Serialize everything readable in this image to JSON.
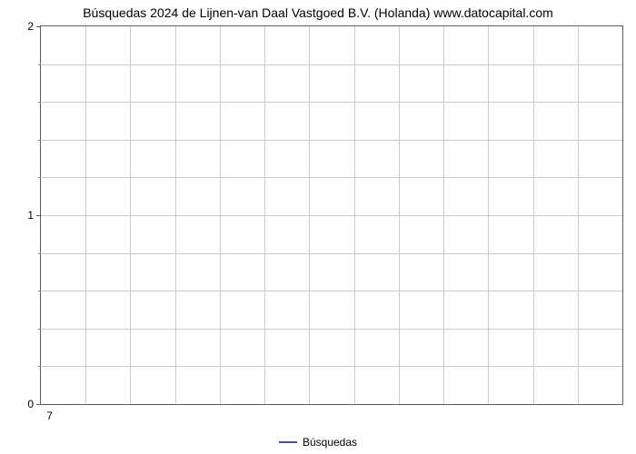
{
  "chart": {
    "type": "line",
    "title": "Búsquedas 2024 de Lijnen-van Daal Vastgoed B.V. (Holanda) www.datocapital.com",
    "title_fontsize": 14,
    "title_color": "#000000",
    "background_color": "#ffffff",
    "plot_border_color": "#5b5b5b",
    "grid_color": "#cccccc",
    "x": {
      "ticks": [
        7
      ],
      "tick_labels": [
        "7"
      ],
      "tick_positions_pct": [
        1.5
      ]
    },
    "y": {
      "min": 0,
      "max": 2,
      "major_ticks": [
        0,
        1,
        2
      ],
      "minor_count_between": 4,
      "label_fontsize": 12
    },
    "legend": {
      "label": "Búsquedas",
      "line_color": "#3853a3",
      "line_width": 2
    },
    "series": [
      {
        "name": "Búsquedas",
        "color": "#3853a3",
        "line_width": 2,
        "x": [],
        "y": []
      }
    ],
    "vgrid_count": 13
  }
}
